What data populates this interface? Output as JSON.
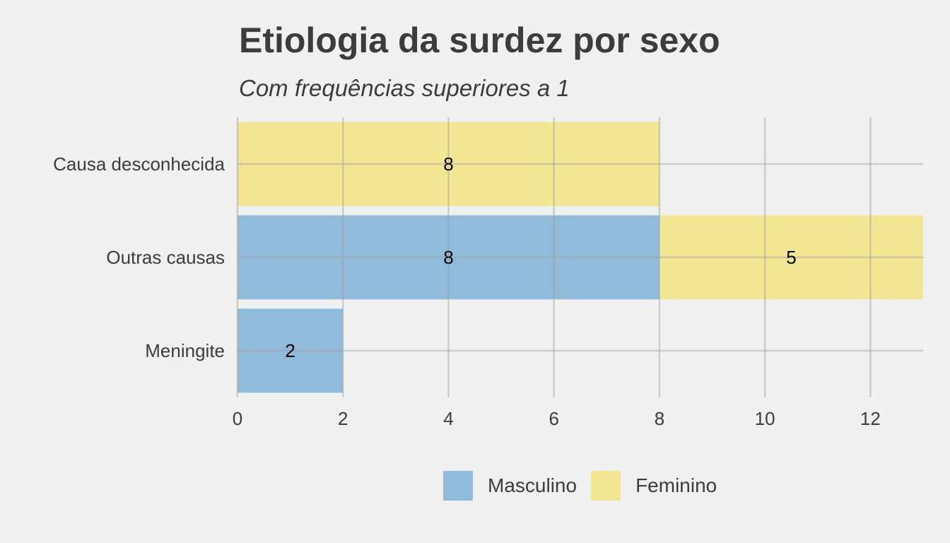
{
  "chart_data": {
    "type": "bar",
    "orientation": "horizontal",
    "stacked": true,
    "title": "Etiologia da surdez por sexo",
    "subtitle": "Com frequências superiores a 1",
    "xlabel": "",
    "ylabel": "",
    "categories": [
      "Causa desconhecida",
      "Outras causas",
      "Meningite"
    ],
    "series": [
      {
        "name": "Masculino",
        "color": "#91bbda",
        "values": [
          0,
          8,
          2
        ]
      },
      {
        "name": "Feminino",
        "color": "#f3e692",
        "values": [
          8,
          5,
          0
        ]
      }
    ],
    "xlim": [
      0,
      13
    ],
    "xticks": [
      0,
      2,
      4,
      6,
      8,
      10,
      12
    ],
    "grid": true,
    "legend_position": "bottom"
  }
}
